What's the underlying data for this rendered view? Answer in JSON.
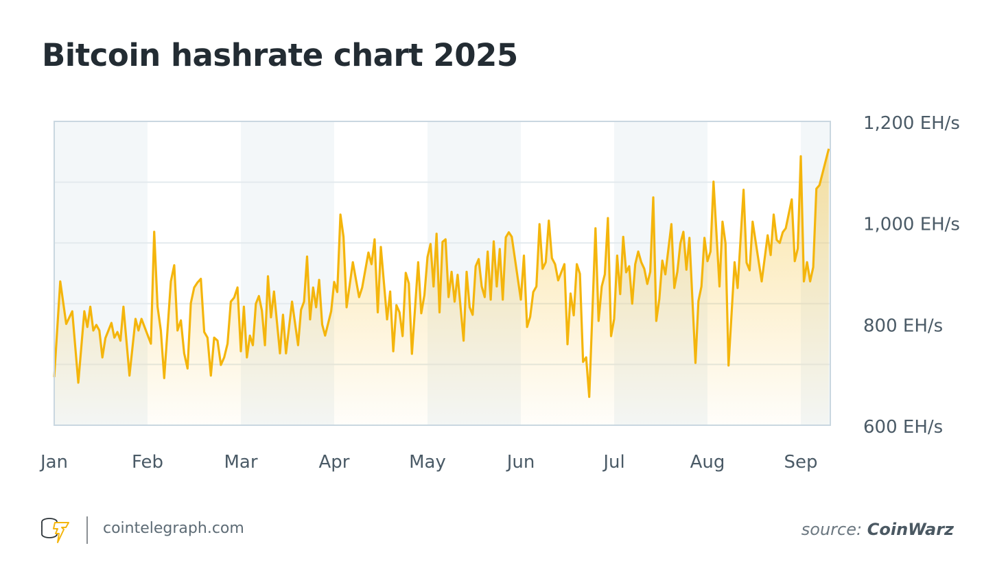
{
  "title": "Bitcoin hashrate chart 2025",
  "footer": {
    "site": "cointelegraph.com",
    "source_prefix": "source:",
    "source_name": "CoinWarz"
  },
  "colors": {
    "line": "#f4b50c",
    "band": "#f3f7f9",
    "frame": "#c9d7e0",
    "grid": "#e3eaee",
    "text": "#4a5a66"
  },
  "chart_data": {
    "type": "area",
    "title": "Bitcoin hashrate chart 2025",
    "unit": "EH/s",
    "ylim": [
      600,
      1200
    ],
    "yticks": [
      600,
      800,
      1000,
      1200
    ],
    "ytick_labels": [
      "600 EH/s",
      "800 EH/s",
      "1,000 EH/s",
      "1,200 EH/s"
    ],
    "gridlines": [
      720,
      840,
      960,
      1080
    ],
    "xtick_labels": [
      "Jan",
      "Feb",
      "Mar",
      "Apr",
      "May",
      "Jun",
      "Jul",
      "Aug",
      "Sep"
    ],
    "grid": true,
    "series": [
      {
        "points": [
          [
            "2025-01-01",
            695
          ],
          [
            "2025-01-03",
            884
          ],
          [
            "2025-01-05",
            800
          ],
          [
            "2025-01-07",
            825
          ],
          [
            "2025-01-09",
            684
          ],
          [
            "2025-01-11",
            825
          ],
          [
            "2025-01-12",
            794
          ],
          [
            "2025-01-13",
            834
          ],
          [
            "2025-01-14",
            787
          ],
          [
            "2025-01-15",
            798
          ],
          [
            "2025-01-16",
            787
          ],
          [
            "2025-01-17",
            734
          ],
          [
            "2025-01-18",
            772
          ],
          [
            "2025-01-20",
            802
          ],
          [
            "2025-01-21",
            773
          ],
          [
            "2025-01-22",
            784
          ],
          [
            "2025-01-23",
            767
          ],
          [
            "2025-01-24",
            834
          ],
          [
            "2025-01-26",
            698
          ],
          [
            "2025-01-28",
            810
          ],
          [
            "2025-01-29",
            787
          ],
          [
            "2025-01-30",
            810
          ],
          [
            "2025-02-02",
            761
          ],
          [
            "2025-02-03",
            982
          ],
          [
            "2025-02-04",
            834
          ],
          [
            "2025-02-05",
            787
          ],
          [
            "2025-02-06",
            693
          ],
          [
            "2025-02-08",
            884
          ],
          [
            "2025-02-09",
            916
          ],
          [
            "2025-02-10",
            787
          ],
          [
            "2025-02-11",
            807
          ],
          [
            "2025-02-12",
            742
          ],
          [
            "2025-02-13",
            712
          ],
          [
            "2025-02-14",
            841
          ],
          [
            "2025-02-15",
            872
          ],
          [
            "2025-02-16",
            882
          ],
          [
            "2025-02-17",
            889
          ],
          [
            "2025-02-18",
            784
          ],
          [
            "2025-02-19",
            773
          ],
          [
            "2025-02-20",
            698
          ],
          [
            "2025-02-21",
            773
          ],
          [
            "2025-02-22",
            767
          ],
          [
            "2025-02-23",
            719
          ],
          [
            "2025-02-24",
            734
          ],
          [
            "2025-02-25",
            761
          ],
          [
            "2025-02-26",
            844
          ],
          [
            "2025-02-27",
            852
          ],
          [
            "2025-02-28",
            872
          ],
          [
            "2025-03-01",
            746
          ],
          [
            "2025-03-02",
            834
          ],
          [
            "2025-03-03",
            734
          ],
          [
            "2025-03-04",
            777
          ],
          [
            "2025-03-05",
            758
          ],
          [
            "2025-03-06",
            840
          ],
          [
            "2025-03-07",
            855
          ],
          [
            "2025-03-08",
            826
          ],
          [
            "2025-03-09",
            758
          ],
          [
            "2025-03-10",
            894
          ],
          [
            "2025-03-11",
            813
          ],
          [
            "2025-03-12",
            864
          ],
          [
            "2025-03-14",
            742
          ],
          [
            "2025-03-15",
            818
          ],
          [
            "2025-03-16",
            742
          ],
          [
            "2025-03-18",
            844
          ],
          [
            "2025-03-20",
            758
          ],
          [
            "2025-03-21",
            828
          ],
          [
            "2025-03-22",
            844
          ],
          [
            "2025-03-23",
            933
          ],
          [
            "2025-03-24",
            809
          ],
          [
            "2025-03-25",
            872
          ],
          [
            "2025-03-26",
            833
          ],
          [
            "2025-03-27",
            887
          ],
          [
            "2025-03-28",
            799
          ],
          [
            "2025-03-29",
            777
          ],
          [
            "2025-03-31",
            825
          ],
          [
            "2025-04-01",
            883
          ],
          [
            "2025-04-02",
            863
          ],
          [
            "2025-04-03",
            1016
          ],
          [
            "2025-04-04",
            972
          ],
          [
            "2025-04-05",
            833
          ],
          [
            "2025-04-07",
            922
          ],
          [
            "2025-04-09",
            853
          ],
          [
            "2025-04-10",
            872
          ],
          [
            "2025-04-12",
            941
          ],
          [
            "2025-04-13",
            918
          ],
          [
            "2025-04-14",
            967
          ],
          [
            "2025-04-15",
            823
          ],
          [
            "2025-04-16",
            952
          ],
          [
            "2025-04-18",
            809
          ],
          [
            "2025-04-19",
            864
          ],
          [
            "2025-04-20",
            746
          ],
          [
            "2025-04-21",
            837
          ],
          [
            "2025-04-22",
            823
          ],
          [
            "2025-04-23",
            776
          ],
          [
            "2025-04-24",
            901
          ],
          [
            "2025-04-25",
            880
          ],
          [
            "2025-04-26",
            741
          ],
          [
            "2025-04-28",
            922
          ],
          [
            "2025-04-29",
            821
          ],
          [
            "2025-04-30",
            857
          ],
          [
            "2025-05-01",
            932
          ],
          [
            "2025-05-02",
            958
          ],
          [
            "2025-05-03",
            874
          ],
          [
            "2025-05-04",
            978
          ],
          [
            "2025-05-05",
            823
          ],
          [
            "2025-05-06",
            962
          ],
          [
            "2025-05-07",
            967
          ],
          [
            "2025-05-08",
            853
          ],
          [
            "2025-05-09",
            903
          ],
          [
            "2025-05-10",
            844
          ],
          [
            "2025-05-11",
            897
          ],
          [
            "2025-05-13",
            767
          ],
          [
            "2025-05-14",
            903
          ],
          [
            "2025-05-15",
            833
          ],
          [
            "2025-05-16",
            818
          ],
          [
            "2025-05-17",
            914
          ],
          [
            "2025-05-18",
            928
          ],
          [
            "2025-05-19",
            874
          ],
          [
            "2025-05-20",
            853
          ],
          [
            "2025-05-21",
            943
          ],
          [
            "2025-05-22",
            848
          ],
          [
            "2025-05-23",
            963
          ],
          [
            "2025-05-24",
            874
          ],
          [
            "2025-05-25",
            948
          ],
          [
            "2025-05-26",
            848
          ],
          [
            "2025-05-27",
            971
          ],
          [
            "2025-05-28",
            981
          ],
          [
            "2025-05-29",
            972
          ],
          [
            "2025-06-01",
            848
          ],
          [
            "2025-06-02",
            935
          ],
          [
            "2025-06-03",
            794
          ],
          [
            "2025-06-04",
            814
          ],
          [
            "2025-06-05",
            863
          ],
          [
            "2025-06-06",
            874
          ],
          [
            "2025-06-07",
            997
          ],
          [
            "2025-06-08",
            909
          ],
          [
            "2025-06-09",
            922
          ],
          [
            "2025-06-10",
            1004
          ],
          [
            "2025-06-11",
            930
          ],
          [
            "2025-06-12",
            918
          ],
          [
            "2025-06-13",
            886
          ],
          [
            "2025-06-15",
            918
          ],
          [
            "2025-06-16",
            760
          ],
          [
            "2025-06-17",
            860
          ],
          [
            "2025-06-18",
            817
          ],
          [
            "2025-06-19",
            918
          ],
          [
            "2025-06-20",
            899
          ],
          [
            "2025-06-21",
            725
          ],
          [
            "2025-06-22",
            734
          ],
          [
            "2025-06-23",
            656
          ],
          [
            "2025-06-25",
            989
          ],
          [
            "2025-06-26",
            806
          ],
          [
            "2025-06-27",
            874
          ],
          [
            "2025-06-28",
            898
          ],
          [
            "2025-06-29",
            1009
          ],
          [
            "2025-06-30",
            776
          ],
          [
            "2025-07-01",
            810
          ],
          [
            "2025-07-02",
            935
          ],
          [
            "2025-07-03",
            859
          ],
          [
            "2025-07-04",
            972
          ],
          [
            "2025-07-05",
            902
          ],
          [
            "2025-07-06",
            914
          ],
          [
            "2025-07-07",
            840
          ],
          [
            "2025-07-08",
            918
          ],
          [
            "2025-07-09",
            943
          ],
          [
            "2025-07-10",
            922
          ],
          [
            "2025-07-11",
            909
          ],
          [
            "2025-07-12",
            879
          ],
          [
            "2025-07-13",
            903
          ],
          [
            "2025-07-14",
            1050
          ],
          [
            "2025-07-15",
            806
          ],
          [
            "2025-07-16",
            849
          ],
          [
            "2025-07-17",
            925
          ],
          [
            "2025-07-18",
            898
          ],
          [
            "2025-07-20",
            997
          ],
          [
            "2025-07-21",
            871
          ],
          [
            "2025-07-22",
            903
          ],
          [
            "2025-07-23",
            959
          ],
          [
            "2025-07-24",
            982
          ],
          [
            "2025-07-25",
            907
          ],
          [
            "2025-07-26",
            970
          ],
          [
            "2025-07-28",
            723
          ],
          [
            "2025-07-29",
            845
          ],
          [
            "2025-07-30",
            874
          ],
          [
            "2025-07-31",
            970
          ],
          [
            "2025-08-01",
            924
          ],
          [
            "2025-08-02",
            943
          ],
          [
            "2025-08-03",
            1081
          ],
          [
            "2025-08-05",
            874
          ],
          [
            "2025-08-06",
            1002
          ],
          [
            "2025-08-07",
            959
          ],
          [
            "2025-08-08",
            718
          ],
          [
            "2025-08-10",
            922
          ],
          [
            "2025-08-11",
            871
          ],
          [
            "2025-08-13",
            1065
          ],
          [
            "2025-08-14",
            921
          ],
          [
            "2025-08-15",
            906
          ],
          [
            "2025-08-16",
            1002
          ],
          [
            "2025-08-19",
            884
          ],
          [
            "2025-08-21",
            975
          ],
          [
            "2025-08-22",
            936
          ],
          [
            "2025-08-23",
            1016
          ],
          [
            "2025-08-24",
            966
          ],
          [
            "2025-08-25",
            960
          ],
          [
            "2025-08-26",
            981
          ],
          [
            "2025-08-27",
            989
          ],
          [
            "2025-08-29",
            1046
          ],
          [
            "2025-08-30",
            924
          ],
          [
            "2025-08-31",
            949
          ],
          [
            "2025-09-01",
            1131
          ],
          [
            "2025-09-02",
            884
          ],
          [
            "2025-09-03",
            922
          ],
          [
            "2025-09-04",
            884
          ],
          [
            "2025-09-05",
            912
          ],
          [
            "2025-09-06",
            1067
          ],
          [
            "2025-09-07",
            1074
          ],
          [
            "2025-09-10",
            1146
          ]
        ]
      }
    ]
  }
}
